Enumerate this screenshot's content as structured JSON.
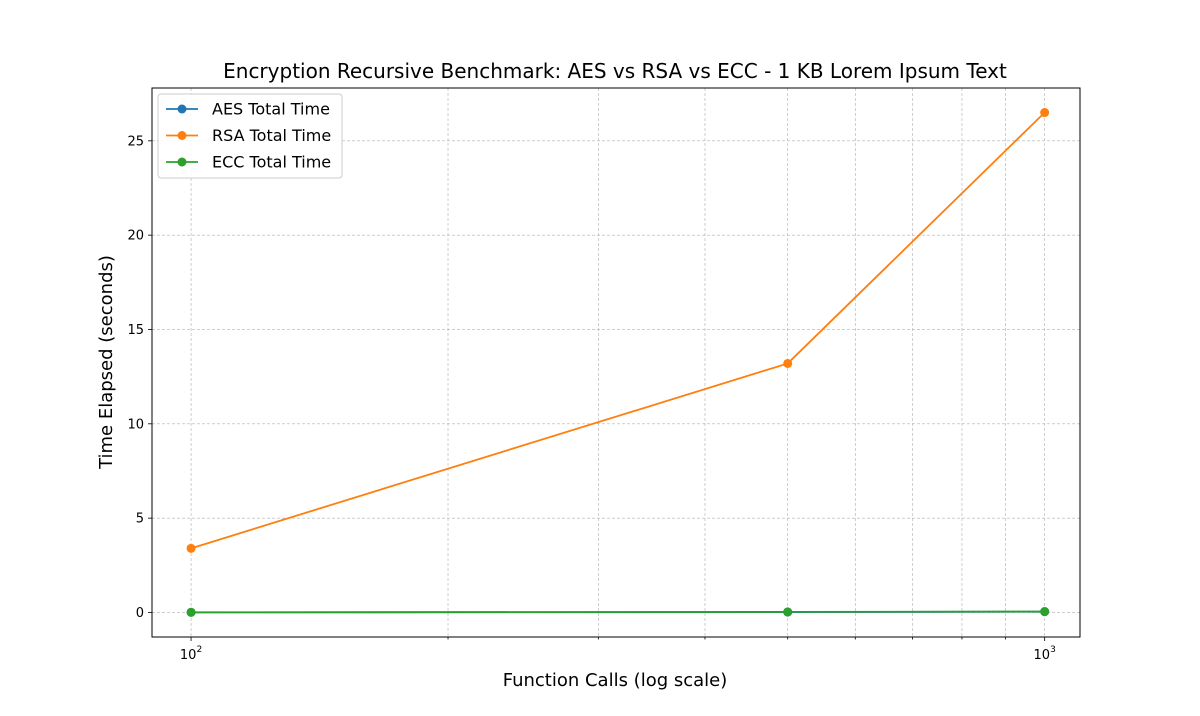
{
  "chart_data": {
    "type": "line",
    "title": "Encryption Recursive Benchmark: AES vs RSA vs ECC - 1 KB Lorem Ipsum Text",
    "xlabel": "Function Calls (log scale)",
    "ylabel": "Time Elapsed (seconds)",
    "x_scale": "log",
    "xlim": [
      90,
      1100
    ],
    "ylim": [
      -1.3,
      27.8
    ],
    "x_ticks": [
      {
        "value": 100,
        "base": "10",
        "exp": "2"
      },
      {
        "value": 1000,
        "base": "10",
        "exp": "3"
      }
    ],
    "y_ticks": [
      {
        "value": 0,
        "label": "0"
      },
      {
        "value": 5,
        "label": "5"
      },
      {
        "value": 10,
        "label": "10"
      },
      {
        "value": 15,
        "label": "15"
      },
      {
        "value": 20,
        "label": "20"
      },
      {
        "value": 25,
        "label": "25"
      }
    ],
    "grid": true,
    "legend_position": "top-left",
    "series": [
      {
        "name": "AES Total Time",
        "color": "#1f77b4",
        "x": [
          100,
          500,
          1000
        ],
        "y": [
          0.005,
          0.02,
          0.04
        ]
      },
      {
        "name": "RSA Total Time",
        "color": "#ff7f0e",
        "x": [
          100,
          500,
          1000
        ],
        "y": [
          3.4,
          13.2,
          26.5
        ]
      },
      {
        "name": "ECC Total Time",
        "color": "#2ca02c",
        "x": [
          100,
          500,
          1000
        ],
        "y": [
          0.01,
          0.03,
          0.05
        ]
      }
    ]
  }
}
